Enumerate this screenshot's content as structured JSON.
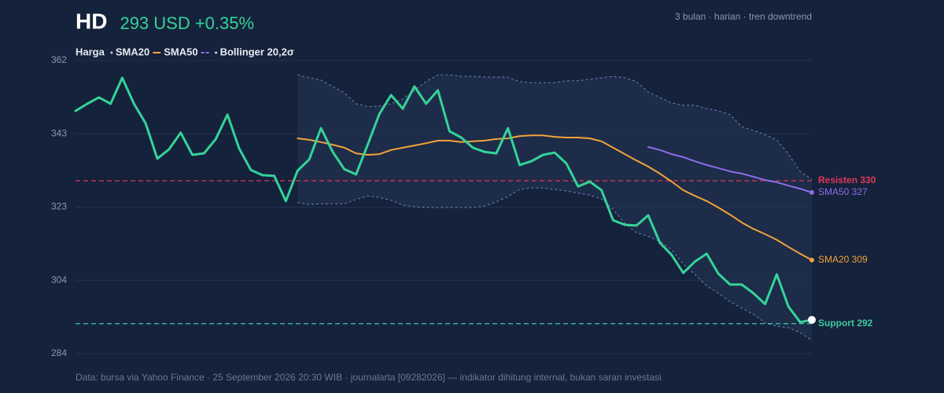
{
  "chart_data": {
    "type": "line",
    "title": "HD",
    "price_label": "293 USD +0.35%",
    "subtitle": "3 bulan · harian · tren downtrend",
    "footer": "Data: bursa via Yahoo Finance · 25 September 2026 20:30 WIB · journalarta [09282026] — indikator dihitung internal, bukan saran investasi",
    "ylim": [
      284,
      362
    ],
    "yticks": [
      284,
      {
        "value": 303.5,
        "label": "304"
      },
      323,
      {
        "value": 342.5,
        "label": "343"
      },
      362
    ],
    "grid": true,
    "series": [
      {
        "name": "Harga",
        "color": "#34d399",
        "values": [
          348.6,
          350.5,
          352.2,
          350.5,
          357.4,
          350.5,
          345.3,
          335.9,
          338.4,
          342.8,
          336.9,
          337.3,
          341.1,
          347.6,
          338.6,
          332.9,
          331.5,
          331.3,
          324.6,
          332.7,
          335.7,
          344.0,
          337.7,
          333.1,
          331.7,
          339.6,
          347.8,
          352.8,
          349.2,
          355.1,
          350.5,
          354.1,
          343.2,
          341.5,
          338.8,
          337.7,
          337.3,
          344.0,
          334.2,
          335.2,
          336.9,
          337.5,
          334.6,
          328.5,
          329.8,
          327.5,
          319.5,
          318.3,
          318.1,
          320.8,
          313.5,
          310.3,
          305.5,
          308.5,
          310.6,
          305.3,
          302.4,
          302.4,
          300.1,
          297.2,
          305.1,
          296.5,
          292.4,
          293.0
        ]
      },
      {
        "name": "SMA20",
        "color": "#f0a43a",
        "end_label": "SMA20 309",
        "values": [
          null,
          null,
          null,
          null,
          null,
          null,
          null,
          null,
          null,
          null,
          null,
          null,
          null,
          null,
          null,
          null,
          null,
          null,
          null,
          341.3,
          340.9,
          340.3,
          339.6,
          338.8,
          337.3,
          336.9,
          337.1,
          338.2,
          338.8,
          339.4,
          340.0,
          340.7,
          340.7,
          340.3,
          340.5,
          340.7,
          341.1,
          341.3,
          341.9,
          342.1,
          342.1,
          341.7,
          341.5,
          341.5,
          341.3,
          340.5,
          338.8,
          337.1,
          335.4,
          333.8,
          331.9,
          329.8,
          327.5,
          326.0,
          324.6,
          322.9,
          321.0,
          318.9,
          317.2,
          315.8,
          314.3,
          312.4,
          310.6,
          308.9
        ]
      },
      {
        "name": "SMA50",
        "color": "#8b6fe8",
        "end_label": "SMA50 327",
        "values": [
          null,
          null,
          null,
          null,
          null,
          null,
          null,
          null,
          null,
          null,
          null,
          null,
          null,
          null,
          null,
          null,
          null,
          null,
          null,
          null,
          null,
          null,
          null,
          null,
          null,
          null,
          null,
          null,
          null,
          null,
          null,
          null,
          null,
          null,
          null,
          null,
          null,
          null,
          null,
          null,
          null,
          null,
          null,
          null,
          null,
          null,
          null,
          null,
          null,
          339.0,
          338.2,
          337.1,
          336.3,
          335.2,
          334.2,
          333.4,
          332.5,
          331.9,
          331.1,
          330.2,
          329.6,
          328.7,
          327.9,
          326.9
        ]
      }
    ],
    "bands": {
      "name": "Bollinger 20,2σ",
      "color": "#6f82b4",
      "fill": "#1d2c49",
      "upper": [
        null,
        null,
        null,
        null,
        null,
        null,
        null,
        null,
        null,
        null,
        null,
        null,
        null,
        null,
        null,
        null,
        null,
        null,
        null,
        358.2,
        357.4,
        356.8,
        355.1,
        353.4,
        350.5,
        349.7,
        349.9,
        350.5,
        351.8,
        354.1,
        356.4,
        358.2,
        358.2,
        357.8,
        357.8,
        357.6,
        357.6,
        357.6,
        356.4,
        356.1,
        356.1,
        356.1,
        356.6,
        356.6,
        357.0,
        357.4,
        357.8,
        357.4,
        356.4,
        353.6,
        352.2,
        350.7,
        350.1,
        350.1,
        349.2,
        348.6,
        347.6,
        344.4,
        343.4,
        342.3,
        340.9,
        337.1,
        332.5,
        330.4
      ],
      "lower": [
        null,
        null,
        null,
        null,
        null,
        null,
        null,
        null,
        null,
        null,
        null,
        null,
        null,
        null,
        null,
        null,
        null,
        null,
        null,
        324.2,
        323.7,
        323.9,
        323.9,
        323.9,
        325.0,
        326.0,
        325.6,
        324.8,
        323.5,
        323.1,
        322.9,
        322.9,
        322.9,
        322.9,
        322.9,
        323.3,
        324.4,
        325.8,
        327.7,
        328.1,
        328.1,
        327.7,
        327.3,
        326.7,
        326.2,
        325.2,
        322.3,
        318.7,
        316.2,
        315.2,
        313.9,
        311.6,
        307.8,
        305.1,
        302.0,
        300.1,
        297.8,
        296.1,
        294.5,
        292.2,
        291.3,
        290.9,
        289.6,
        287.5
      ]
    },
    "reference_lines": [
      {
        "label": "Resisten 330",
        "value": 330,
        "color": "#e0365a"
      },
      {
        "label": "Support 292",
        "value": 292,
        "color": "#3cc9a0"
      }
    ]
  }
}
